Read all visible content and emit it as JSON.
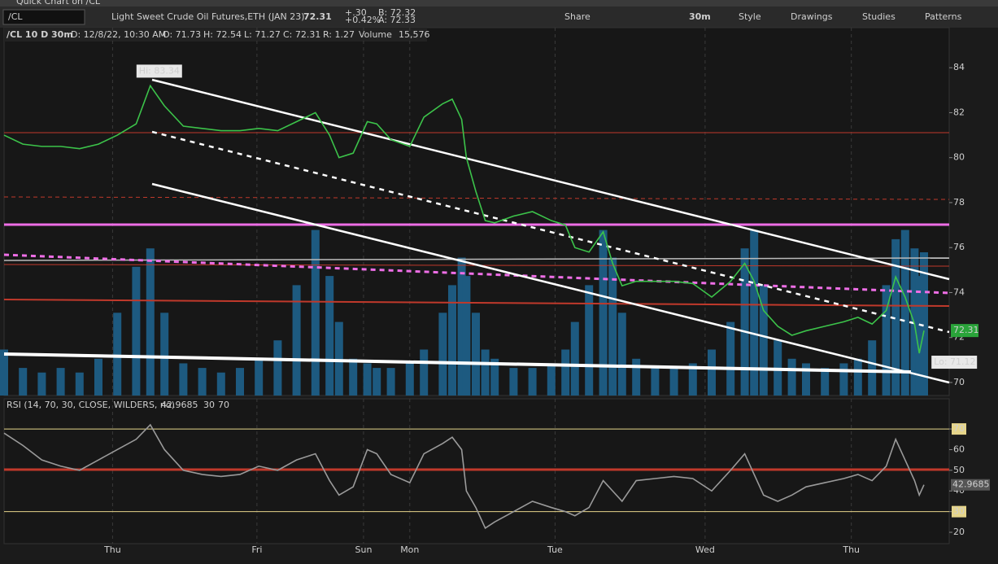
{
  "window_title": "Quick Chart on /CL",
  "toolbar": {
    "symbol": "/CL",
    "description": "Light Sweet Crude Oil Futures,ETH (JAN 23)",
    "last": "72.31",
    "change": "+.30",
    "change_pct": "+0.42%",
    "bid": "B: 72.32",
    "ask": "A: 72.33",
    "buttons": [
      "Share",
      "30m",
      "Style",
      "Drawings",
      "Studies",
      "Patterns"
    ]
  },
  "info": {
    "chart": "/CL 10 D 30m",
    "date": "D: 12/8/22, 10:30 AM",
    "open": "O: 71.73",
    "high": "H: 72.54",
    "low": "L: 71.27",
    "close": "C: 72.31",
    "range": "R: 1.27",
    "volume_label": "Volume",
    "volume": "15,576"
  },
  "chart_data": [
    {
      "type": "line",
      "x": [
        0,
        2,
        4,
        6,
        8,
        10,
        12,
        14,
        15.5,
        17,
        19,
        21,
        23,
        25,
        27,
        29,
        31,
        33,
        34.5,
        35.5,
        37,
        38.5,
        39.5,
        41,
        43,
        44.5,
        46.5,
        47.5,
        48.5,
        49,
        50,
        51,
        52,
        54,
        56,
        58,
        59.5,
        60.5,
        62,
        63.5,
        64.5,
        65.5,
        67,
        69,
        71,
        73,
        75,
        77,
        78.5,
        79.5,
        80.5,
        82,
        83.5,
        85,
        87,
        89,
        90.5,
        92,
        93.5,
        94.5,
        95.5,
        96.5,
        97,
        97.5
      ],
      "xlim": [
        0,
        100
      ],
      "xticks": [
        {
          "value": 11.5,
          "label": "Thu"
        },
        {
          "value": 26.8,
          "label": "Fri"
        },
        {
          "value": 38.1,
          "label": "Sun"
        },
        {
          "value": 43,
          "label": "Mon"
        },
        {
          "value": 58.4,
          "label": "Tue"
        },
        {
          "value": 74.3,
          "label": "Wed"
        },
        {
          "value": 89.8,
          "label": "Thu"
        }
      ],
      "ylim": [
        69.42,
        85.78
      ],
      "yticks": [
        70,
        72,
        74,
        76,
        78,
        80,
        82,
        84
      ],
      "y2lim": [
        0,
        40000
      ],
      "series": [
        {
          "color": "#3cc34a",
          "values": [
            81.0,
            80.6,
            80.5,
            80.5,
            80.4,
            80.6,
            81.0,
            81.5,
            83.2,
            82.3,
            81.4,
            81.3,
            81.2,
            81.2,
            81.3,
            81.2,
            81.6,
            82.0,
            81.0,
            80.0,
            80.2,
            81.6,
            81.5,
            80.8,
            80.5,
            81.8,
            82.4,
            82.6,
            81.7,
            80.0,
            78.5,
            77.2,
            77.1,
            77.4,
            77.6,
            77.2,
            77.0,
            76.0,
            75.8,
            76.7,
            75.3,
            74.3,
            74.5,
            74.5,
            74.5,
            74.4,
            73.8,
            74.5,
            75.3,
            74.5,
            73.2,
            72.5,
            72.1,
            72.3,
            72.5,
            72.7,
            72.9,
            72.6,
            73.2,
            74.7,
            73.8,
            72.6,
            71.3,
            72.31
          ]
        },
        {
          "name": "Volume",
          "color": "#1d5a80",
          "axis": "y2",
          "values": [
            5000,
            3000,
            2500,
            3000,
            2500,
            4000,
            9000,
            14000,
            16000,
            9000,
            3500,
            3000,
            2500,
            3000,
            4000,
            6000,
            12000,
            18000,
            13000,
            8000,
            4000,
            3500,
            3000,
            3000,
            3500,
            5000,
            9000,
            12000,
            15000,
            13000,
            9000,
            5000,
            4000,
            3000,
            3000,
            3500,
            5000,
            8000,
            12000,
            18000,
            15000,
            9000,
            4000,
            3000,
            3000,
            3500,
            5000,
            8000,
            16000,
            18000,
            12000,
            6000,
            4000,
            3500,
            3000,
            3500,
            4000,
            6000,
            12000,
            17000,
            18000,
            16000,
            13000,
            15576
          ]
        }
      ],
      "annotations": [
        {
          "label": "Hi: 83.34",
          "value": 83.34,
          "x": 15.5
        },
        {
          "label": "Lo: 71.12",
          "value": 71.12,
          "x": 97
        },
        {
          "label": "72.31",
          "value": 72.31,
          "x": 100
        }
      ]
    },
    {
      "type": "line",
      "title": "RSI (14, 70, 30, CLOSE, WILDERS, no)",
      "x": [
        0,
        2,
        4,
        6,
        8,
        10,
        12,
        14,
        15.5,
        17,
        19,
        21,
        23,
        25,
        27,
        29,
        31,
        33,
        34.5,
        35.5,
        37,
        38.5,
        39.5,
        41,
        43,
        44.5,
        46.5,
        47.5,
        48.5,
        49,
        50,
        51,
        52,
        54,
        56,
        58,
        59.5,
        60.5,
        62,
        63.5,
        64.5,
        65.5,
        67,
        69,
        71,
        73,
        75,
        77,
        78.5,
        79.5,
        80.5,
        82,
        83.5,
        85,
        87,
        89,
        90.5,
        92,
        93.5,
        94.5,
        95.5,
        96.5,
        97,
        97.5
      ],
      "xlim": [
        0,
        100
      ],
      "ylim": [
        14.5,
        84.6
      ],
      "yticks": [
        20,
        30,
        40,
        50,
        60,
        70
      ],
      "levels": [
        30,
        70
      ],
      "series": [
        {
          "color": "#9a9a9a",
          "values": [
            68,
            62,
            55,
            52,
            50,
            55,
            60,
            65,
            72,
            60,
            50,
            48,
            47,
            48,
            52,
            50,
            55,
            58,
            45,
            38,
            42,
            60,
            58,
            48,
            44,
            58,
            63,
            66,
            60,
            40,
            32,
            22,
            25,
            30,
            35,
            32,
            30,
            28,
            32,
            45,
            40,
            35,
            45,
            46,
            47,
            46,
            40,
            50,
            58,
            48,
            38,
            35,
            38,
            42,
            44,
            46,
            48,
            45,
            52,
            65,
            55,
            45,
            38,
            42.9685
          ]
        }
      ],
      "current": {
        "label": "42.9685",
        "value": 42.9685
      }
    }
  ]
}
